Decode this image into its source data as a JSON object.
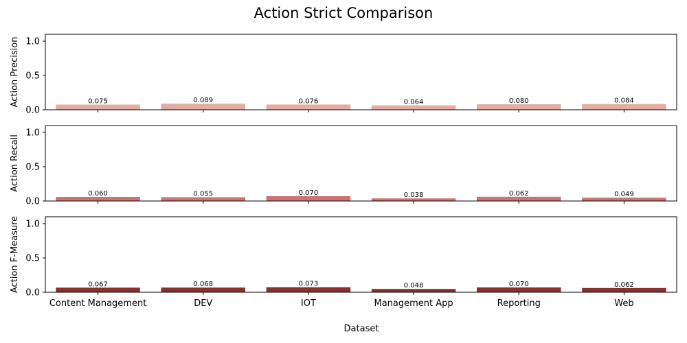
{
  "title": "Action Strict Comparison",
  "xlabel": "Dataset",
  "chart_data": [
    {
      "type": "bar",
      "categories": [
        "Content Management",
        "DEV",
        "IOT",
        "Management App",
        "Reporting",
        "Web"
      ],
      "values": [
        0.075,
        0.089,
        0.076,
        0.064,
        0.08,
        0.084
      ],
      "labels": [
        "0.075",
        "0.089",
        "0.076",
        "0.064",
        "0.080",
        "0.084"
      ],
      "ylabel": "Action Precision",
      "ylim": [
        0,
        1.1
      ],
      "yticks": [
        "0.0",
        "0.5",
        "1.0"
      ],
      "color": "#e3ada1"
    },
    {
      "type": "bar",
      "categories": [
        "Content Management",
        "DEV",
        "IOT",
        "Management App",
        "Reporting",
        "Web"
      ],
      "values": [
        0.06,
        0.055,
        0.07,
        0.038,
        0.062,
        0.049
      ],
      "labels": [
        "0.060",
        "0.055",
        "0.070",
        "0.038",
        "0.062",
        "0.049"
      ],
      "ylabel": "Action Recall",
      "ylim": [
        0,
        1.1
      ],
      "yticks": [
        "0.0",
        "0.5",
        "1.0"
      ],
      "color": "#c97673"
    },
    {
      "type": "bar",
      "categories": [
        "Content Management",
        "DEV",
        "IOT",
        "Management App",
        "Reporting",
        "Web"
      ],
      "values": [
        0.067,
        0.068,
        0.073,
        0.048,
        0.07,
        0.062
      ],
      "labels": [
        "0.067",
        "0.068",
        "0.073",
        "0.048",
        "0.070",
        "0.062"
      ],
      "ylabel": "Action F-Measure",
      "ylim": [
        0,
        1.1
      ],
      "yticks": [
        "0.0",
        "0.5",
        "1.0"
      ],
      "color": "#8a302e"
    }
  ]
}
